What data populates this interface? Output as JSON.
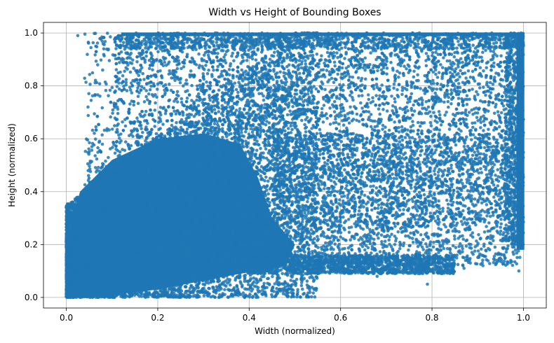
{
  "chart_data": {
    "type": "scatter",
    "title": "Width vs Height of Bounding Boxes",
    "xlabel": "Width (normalized)",
    "ylabel": "Height (normalized)",
    "xlim": [
      -0.05,
      1.05
    ],
    "ylim": [
      -0.04,
      1.04
    ],
    "x_ticks": [
      "0.0",
      "0.2",
      "0.4",
      "0.6",
      "0.8",
      "1.0"
    ],
    "y_ticks": [
      "0.0",
      "0.2",
      "0.4",
      "0.6",
      "0.8",
      "1.0"
    ],
    "grid": true,
    "point_color": "#1f77b4",
    "density_description": "dense cloud of normalized bounding boxes; heaviest mass near width 0-0.4, height 0-0.6; saturated bands along height=1.0 and width=1.0; low-height band near 0.1-0.15 for widths 0.4-0.8",
    "sample_points": [
      {
        "x": 0.025,
        "y": 0.99
      },
      {
        "x": 0.39,
        "y": 0.0
      },
      {
        "x": 0.42,
        "y": 0.02
      },
      {
        "x": 0.5,
        "y": 0.06
      },
      {
        "x": 0.68,
        "y": 0.08
      },
      {
        "x": 0.79,
        "y": 0.05
      },
      {
        "x": 0.87,
        "y": 0.11
      },
      {
        "x": 0.91,
        "y": 0.13
      },
      {
        "x": 0.99,
        "y": 0.1
      },
      {
        "x": 0.55,
        "y": 0.13
      },
      {
        "x": 0.62,
        "y": 0.12
      },
      {
        "x": 0.73,
        "y": 0.14
      }
    ]
  }
}
